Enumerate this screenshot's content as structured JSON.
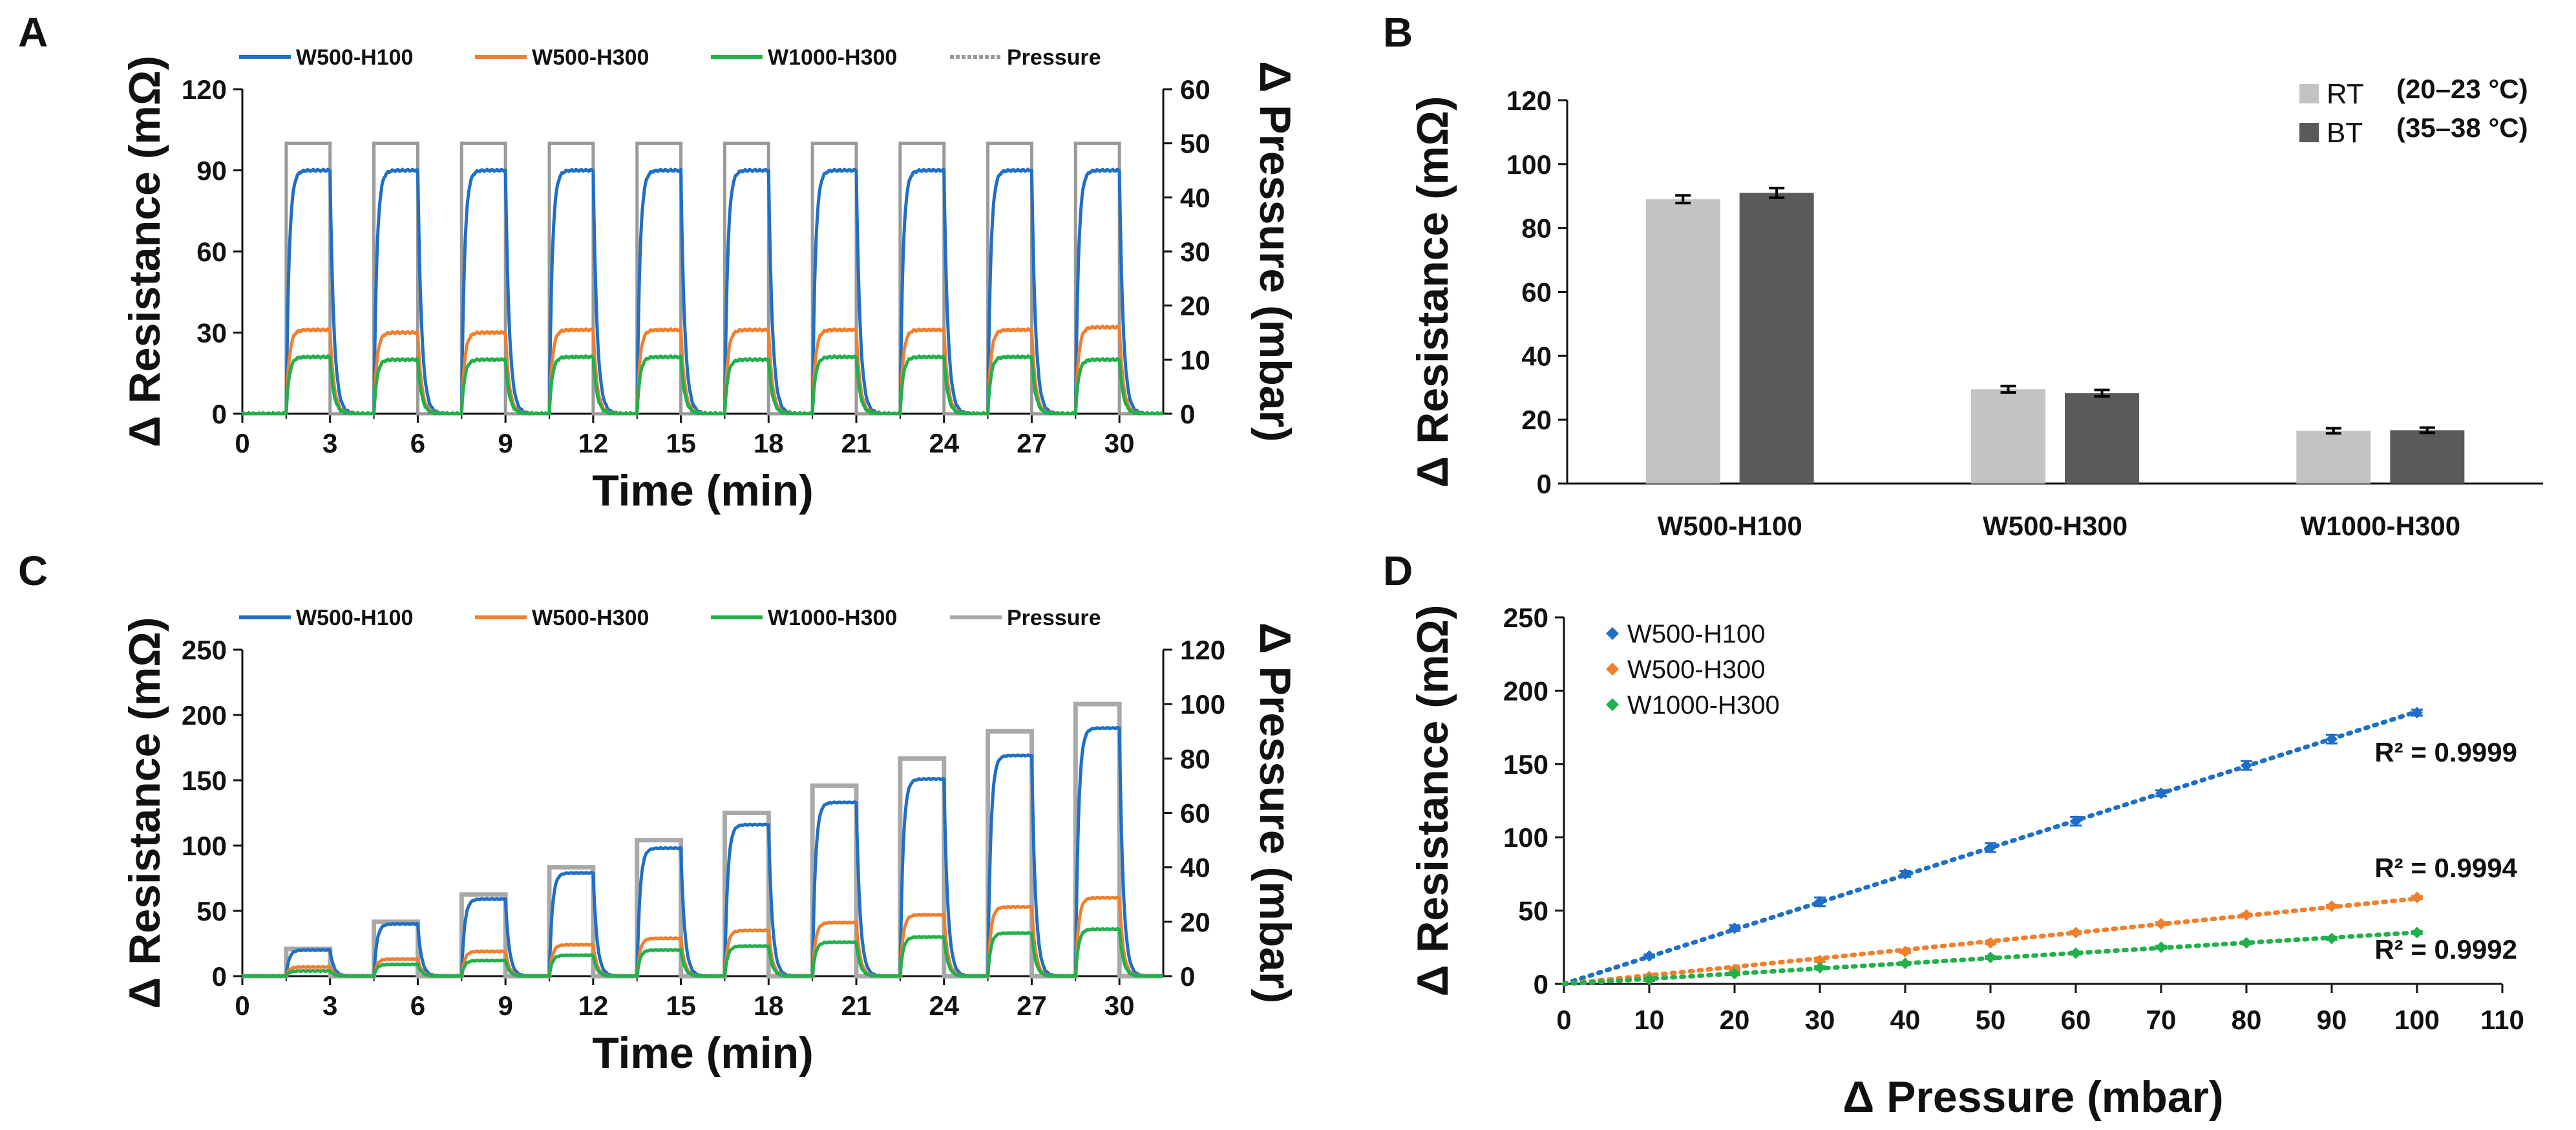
{
  "figure": {
    "panel_labels": [
      "A",
      "B",
      "C",
      "D"
    ]
  },
  "colors": {
    "blue": "#1f6fc6",
    "orange": "#f07f2e",
    "green": "#22b04b",
    "pressure_A": "#9a9a9a",
    "pressure_C": "#a9a9a9",
    "bar_rt": "#c3c3c3",
    "bar_bt": "#5a5a5a",
    "axis": "#111111"
  },
  "chart_data": [
    {
      "panel": "A",
      "type": "line",
      "xlabel": "Time (min)",
      "ylabel": "Δ Resistance (mΩ)",
      "y2label": "Δ Pressure (mbar)",
      "xlim": [
        0,
        31.5
      ],
      "ylim": [
        0,
        120
      ],
      "y2lim": [
        0,
        60
      ],
      "xticks": [
        0,
        3,
        6,
        9,
        12,
        15,
        18,
        21,
        24,
        27,
        30
      ],
      "yticks": [
        0,
        30,
        60,
        90,
        120
      ],
      "y2ticks": [
        0,
        10,
        20,
        30,
        40,
        50,
        60
      ],
      "legend_position": "top",
      "legend": [
        "W500-H100",
        "W500-H300",
        "W1000-H300",
        "Pressure"
      ],
      "period_min": 3,
      "on_start_min": [
        1.5,
        4.5,
        7.5,
        10.5,
        13.5,
        16.5,
        19.5,
        22.5,
        25.5,
        28.5
      ],
      "on_duration_min": 1.5,
      "pressure_plateau_mbar": [
        50,
        50,
        50,
        50,
        50,
        50,
        50,
        50,
        50,
        50
      ],
      "series": [
        {
          "name": "W500-H100",
          "plateau": [
            90,
            90,
            90,
            90,
            90,
            90,
            90,
            90,
            90,
            90
          ]
        },
        {
          "name": "W500-H300",
          "plateau": [
            31,
            30,
            30,
            31,
            31,
            31,
            31,
            31,
            31,
            32
          ]
        },
        {
          "name": "W1000-H300",
          "plateau": [
            21,
            20,
            20,
            21,
            21,
            20,
            21,
            21,
            21,
            20
          ]
        },
        {
          "name": "Pressure",
          "plateau": [
            50,
            50,
            50,
            50,
            50,
            50,
            50,
            50,
            50,
            50
          ]
        }
      ]
    },
    {
      "panel": "B",
      "type": "bar",
      "categories": [
        "W500-H100",
        "W500-H300",
        "W1000-H300"
      ],
      "ylabel": "Δ Resistance (mΩ)",
      "ylim": [
        0,
        120
      ],
      "yticks": [
        0,
        20,
        40,
        60,
        80,
        100,
        120
      ],
      "legend_position": "top-right",
      "series": [
        {
          "name": "RT",
          "note": "(20–23 °C)",
          "values": [
            89,
            29.5,
            16.5
          ],
          "errors": [
            1.2,
            1.0,
            0.8
          ]
        },
        {
          "name": "BT",
          "note": "(35–38 °C)",
          "values": [
            91,
            28.3,
            16.7
          ],
          "errors": [
            1.5,
            1.0,
            0.8
          ]
        }
      ]
    },
    {
      "panel": "C",
      "type": "line",
      "xlabel": "Time (min)",
      "ylabel": "Δ Resistance (mΩ)",
      "y2label": "Δ Pressure (mbar)",
      "xlim": [
        0,
        31.5
      ],
      "ylim": [
        0,
        250
      ],
      "y2lim": [
        0,
        120
      ],
      "xticks": [
        0,
        3,
        6,
        9,
        12,
        15,
        18,
        21,
        24,
        27,
        30
      ],
      "yticks": [
        0,
        50,
        100,
        150,
        200,
        250
      ],
      "y2ticks": [
        0,
        20,
        40,
        60,
        80,
        100,
        120
      ],
      "legend_position": "top",
      "legend": [
        "W500-H100",
        "W500-H300",
        "W1000-H300",
        "Pressure"
      ],
      "period_min": 3,
      "on_start_min": [
        1.5,
        4.5,
        7.5,
        10.5,
        13.5,
        16.5,
        19.5,
        22.5,
        25.5,
        28.5
      ],
      "on_duration_min": 1.5,
      "pressure_plateau_mbar": [
        10,
        20,
        30,
        40,
        50,
        60,
        70,
        80,
        90,
        100
      ],
      "series": [
        {
          "name": "W500-H100",
          "plateau": [
            20,
            40,
            59,
            79,
            98,
            116,
            133,
            151,
            169,
            190
          ]
        },
        {
          "name": "W500-H300",
          "plateau": [
            7,
            13,
            19,
            24,
            29,
            35,
            41,
            47,
            53,
            60
          ]
        },
        {
          "name": "W1000-H300",
          "plateau": [
            4,
            9,
            12,
            16,
            20,
            23,
            26,
            30,
            33,
            36
          ]
        },
        {
          "name": "Pressure",
          "plateau": [
            10,
            20,
            30,
            40,
            50,
            60,
            70,
            80,
            90,
            100
          ]
        }
      ]
    },
    {
      "panel": "D",
      "type": "scatter",
      "xlabel": "Δ Pressure (mbar)",
      "ylabel": "Δ Resistance (mΩ)",
      "xlim": [
        0,
        110
      ],
      "ylim": [
        0,
        250
      ],
      "xticks": [
        0,
        10,
        20,
        30,
        40,
        50,
        60,
        70,
        80,
        90,
        100,
        110
      ],
      "yticks": [
        0,
        50,
        100,
        150,
        200,
        250
      ],
      "legend_position": "top-left",
      "x": [
        10,
        20,
        30,
        40,
        50,
        60,
        70,
        80,
        90,
        100
      ],
      "series": [
        {
          "name": "W500-H100",
          "values": [
            19,
            38,
            56,
            75,
            93,
            111,
            130,
            149,
            167,
            185
          ],
          "errors": [
            1,
            2,
            3,
            2,
            3,
            3,
            2,
            3,
            3,
            2
          ],
          "r2": "R² = 0.9999"
        },
        {
          "name": "W500-H300",
          "values": [
            5,
            10,
            16,
            22,
            28,
            35,
            41,
            47,
            53,
            59
          ],
          "errors": [
            1,
            1,
            1,
            1,
            1,
            1,
            1,
            1,
            1,
            1
          ],
          "r2": "R² = 0.9994"
        },
        {
          "name": "W1000-H300",
          "values": [
            3,
            7,
            11,
            14,
            18,
            21,
            25,
            28,
            31,
            35
          ],
          "errors": [
            1,
            1,
            1,
            1,
            1,
            1,
            1,
            1,
            1,
            1
          ],
          "r2": "R² = 0.9992"
        }
      ]
    }
  ]
}
